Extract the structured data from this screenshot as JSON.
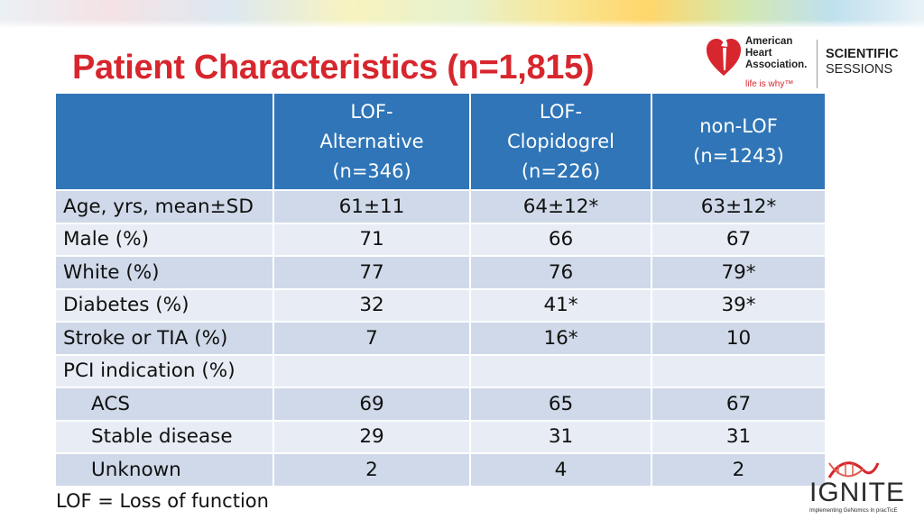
{
  "title": "Patient Characteristics (n=1,815)",
  "logos": {
    "aha": {
      "lines": [
        "American",
        "Heart",
        "Association."
      ],
      "tagline": "life is why™"
    },
    "sessions": {
      "line1": "SCIENTIFIC",
      "line2": "SESSIONS"
    },
    "ignite": {
      "word": "IGNITE",
      "subtitle": "Implementing GeNomics In pracTicE"
    }
  },
  "table": {
    "headers": [
      {
        "lines": []
      },
      {
        "lines": [
          "LOF-",
          "Alternative",
          "(n=346)"
        ]
      },
      {
        "lines": [
          "LOF-",
          "Clopidogrel",
          "(n=226)"
        ]
      },
      {
        "lines": [
          "non-LOF",
          "(n=1243)"
        ]
      }
    ],
    "rows": [
      {
        "label": "Age, yrs, mean±SD",
        "values": [
          "61±11",
          "64±12*",
          "63±12*"
        ]
      },
      {
        "label": "Male (%)",
        "values": [
          "71",
          "66",
          "67"
        ]
      },
      {
        "label": "White (%)",
        "values": [
          "77",
          "76",
          "79*"
        ]
      },
      {
        "label": "Diabetes (%)",
        "values": [
          "32",
          "41*",
          "39*"
        ]
      },
      {
        "label": "Stroke or TIA (%)",
        "values": [
          "7",
          "16*",
          "10"
        ]
      },
      {
        "label": "PCI indication (%)",
        "values": [
          "",
          "",
          ""
        ]
      },
      {
        "label": "ACS",
        "values": [
          "69",
          "65",
          "67"
        ]
      },
      {
        "label": "Stable disease",
        "values": [
          "29",
          "31",
          "31"
        ]
      },
      {
        "label": "Unknown",
        "values": [
          "2",
          "4",
          "2"
        ]
      }
    ]
  },
  "footnote": "LOF = Loss of function",
  "colors": {
    "title": "#d7262d",
    "header_bg": "#2f75b7",
    "row_odd": "#cfd9e9",
    "row_even": "#e8edf5"
  }
}
